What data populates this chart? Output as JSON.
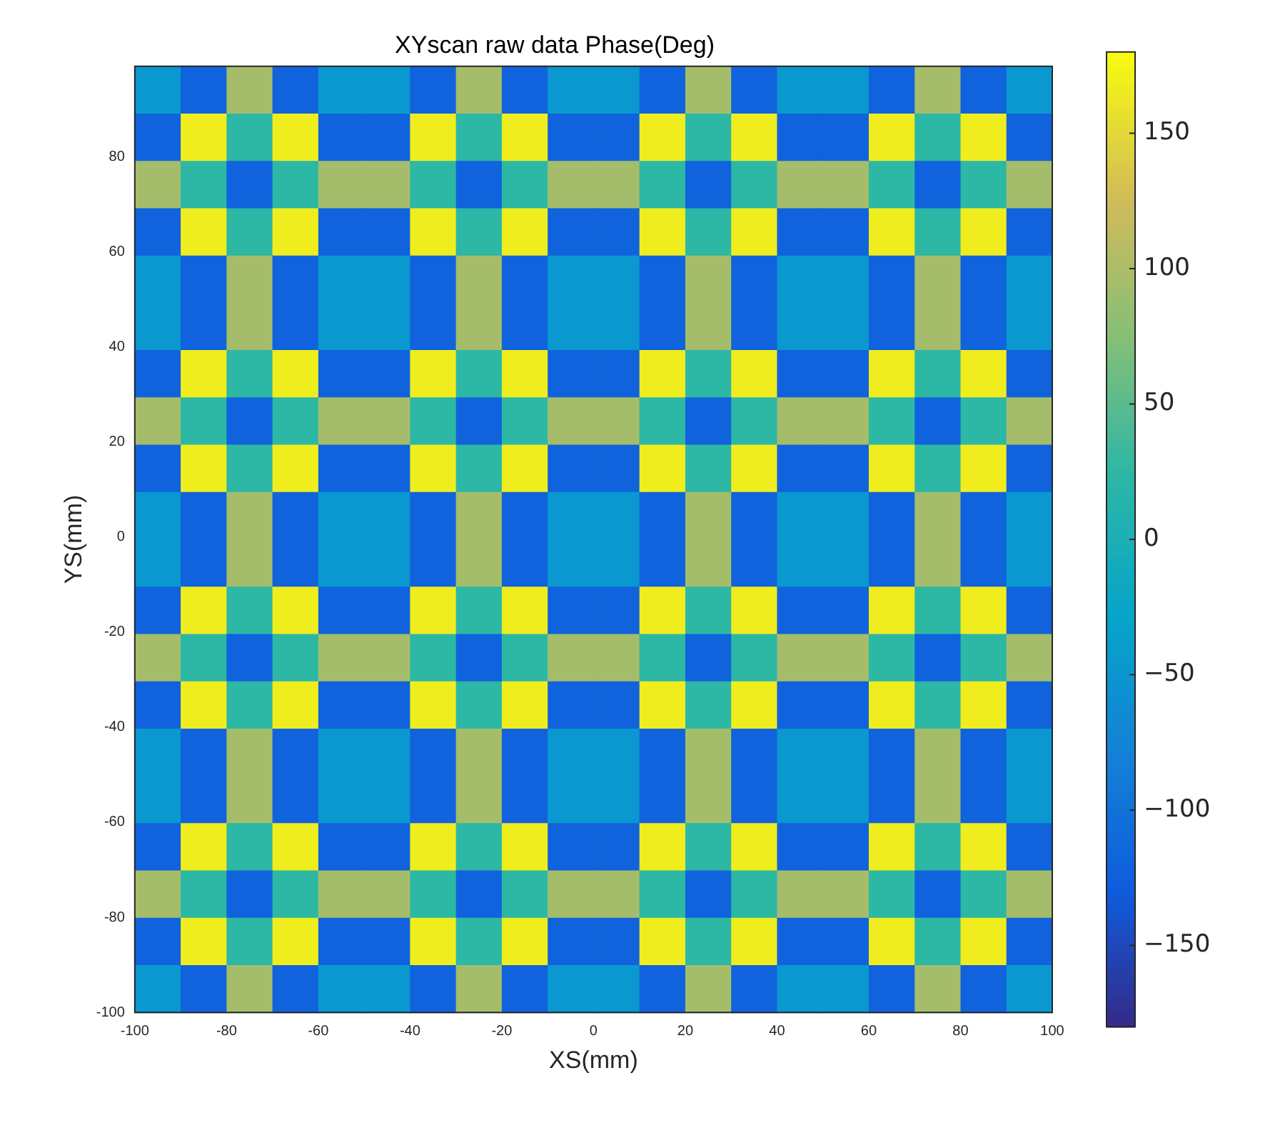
{
  "chart_data": {
    "type": "heatmap",
    "title": "XYscan raw data Phase(Deg)",
    "xlabel": "XS(mm)",
    "ylabel": "YS(mm)",
    "xlim": [
      -100,
      100
    ],
    "xticks": [
      -100,
      -80,
      -60,
      -40,
      -20,
      0,
      20,
      40,
      60,
      80,
      100
    ],
    "ylim": [
      -100,
      99
    ],
    "yticks": [
      -100,
      -80,
      -60,
      -40,
      -20,
      0,
      20,
      40,
      60,
      80
    ],
    "clim": [
      -180,
      180
    ],
    "cticks": [
      -150,
      -100,
      -50,
      0,
      50,
      100,
      150
    ],
    "cells": [
      [
        -48,
        -120,
        96,
        -120,
        -48,
        -48,
        -120,
        96,
        -120,
        -48,
        -48,
        -120,
        96,
        -120,
        -48,
        -48,
        -120,
        96,
        -120,
        -48
      ],
      [
        -120,
        168,
        24,
        168,
        -120,
        -120,
        168,
        24,
        168,
        -120,
        -120,
        168,
        24,
        168,
        -120,
        -120,
        168,
        24,
        168,
        -120
      ],
      [
        96,
        24,
        -120,
        24,
        96,
        96,
        24,
        -120,
        24,
        96,
        96,
        24,
        -120,
        24,
        96,
        96,
        24,
        -120,
        24,
        96
      ],
      [
        -120,
        168,
        24,
        168,
        -120,
        -120,
        168,
        24,
        168,
        -120,
        -120,
        168,
        24,
        168,
        -120,
        -120,
        168,
        24,
        168,
        -120
      ],
      [
        -48,
        -120,
        96,
        -120,
        -48,
        -48,
        -120,
        96,
        -120,
        -48,
        -48,
        -120,
        96,
        -120,
        -48,
        -48,
        -120,
        96,
        -120,
        -48
      ],
      [
        -48,
        -120,
        96,
        -120,
        -48,
        -48,
        -120,
        96,
        -120,
        -48,
        -48,
        -120,
        96,
        -120,
        -48,
        -48,
        -120,
        96,
        -120,
        -48
      ],
      [
        -120,
        168,
        24,
        168,
        -120,
        -120,
        168,
        24,
        168,
        -120,
        -120,
        168,
        24,
        168,
        -120,
        -120,
        168,
        24,
        168,
        -120
      ],
      [
        96,
        24,
        -120,
        24,
        96,
        96,
        24,
        -120,
        24,
        96,
        96,
        24,
        -120,
        24,
        96,
        96,
        24,
        -120,
        24,
        96
      ],
      [
        -120,
        168,
        24,
        168,
        -120,
        -120,
        168,
        24,
        168,
        -120,
        -120,
        168,
        24,
        168,
        -120,
        -120,
        168,
        24,
        168,
        -120
      ],
      [
        -48,
        -120,
        96,
        -120,
        -48,
        -48,
        -120,
        96,
        -120,
        -48,
        -48,
        -120,
        96,
        -120,
        -48,
        -48,
        -120,
        96,
        -120,
        -48
      ],
      [
        -48,
        -120,
        96,
        -120,
        -48,
        -48,
        -120,
        96,
        -120,
        -48,
        -48,
        -120,
        96,
        -120,
        -48,
        -48,
        -120,
        96,
        -120,
        -48
      ],
      [
        -120,
        168,
        24,
        168,
        -120,
        -120,
        168,
        24,
        168,
        -120,
        -120,
        168,
        24,
        168,
        -120,
        -120,
        168,
        24,
        168,
        -120
      ],
      [
        96,
        24,
        -120,
        24,
        96,
        96,
        24,
        -120,
        24,
        96,
        96,
        24,
        -120,
        24,
        96,
        96,
        24,
        -120,
        24,
        96
      ],
      [
        -120,
        168,
        24,
        168,
        -120,
        -120,
        168,
        24,
        168,
        -120,
        -120,
        168,
        24,
        168,
        -120,
        -120,
        168,
        24,
        168,
        -120
      ],
      [
        -48,
        -120,
        96,
        -120,
        -48,
        -48,
        -120,
        96,
        -120,
        -48,
        -48,
        -120,
        96,
        -120,
        -48,
        -48,
        -120,
        96,
        -120,
        -48
      ],
      [
        -48,
        -120,
        96,
        -120,
        -48,
        -48,
        -120,
        96,
        -120,
        -48,
        -48,
        -120,
        96,
        -120,
        -48,
        -48,
        -120,
        96,
        -120,
        -48
      ],
      [
        -120,
        168,
        24,
        168,
        -120,
        -120,
        168,
        24,
        168,
        -120,
        -120,
        168,
        24,
        168,
        -120,
        -120,
        168,
        24,
        168,
        -120
      ],
      [
        96,
        24,
        -120,
        24,
        96,
        96,
        24,
        -120,
        24,
        96,
        96,
        24,
        -120,
        24,
        96,
        96,
        24,
        -120,
        24,
        96
      ],
      [
        -120,
        168,
        24,
        168,
        -120,
        -120,
        168,
        24,
        168,
        -120,
        -120,
        168,
        24,
        168,
        -120,
        -120,
        168,
        24,
        168,
        -120
      ],
      [
        -48,
        -120,
        96,
        -120,
        -48,
        -48,
        -120,
        96,
        -120,
        -48,
        -48,
        -120,
        96,
        -120,
        -48,
        -48,
        -120,
        96,
        -120,
        -48
      ]
    ]
  }
}
